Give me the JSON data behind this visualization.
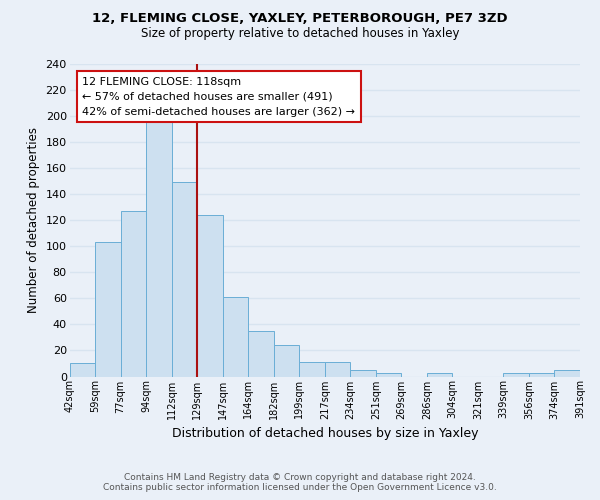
{
  "title1": "12, FLEMING CLOSE, YAXLEY, PETERBOROUGH, PE7 3ZD",
  "title2": "Size of property relative to detached houses in Yaxley",
  "xlabel": "Distribution of detached houses by size in Yaxley",
  "ylabel": "Number of detached properties",
  "bar_labels": [
    "42sqm",
    "59sqm",
    "77sqm",
    "94sqm",
    "112sqm",
    "129sqm",
    "147sqm",
    "164sqm",
    "182sqm",
    "199sqm",
    "217sqm",
    "234sqm",
    "251sqm",
    "269sqm",
    "286sqm",
    "304sqm",
    "321sqm",
    "339sqm",
    "356sqm",
    "374sqm",
    "391sqm"
  ],
  "bar_values": [
    10,
    103,
    127,
    199,
    149,
    124,
    61,
    35,
    24,
    11,
    11,
    5,
    3,
    0,
    3,
    0,
    0,
    3,
    3,
    5
  ],
  "bar_color": "#cde0f0",
  "bar_edge_color": "#6aaed6",
  "annotation_box_text": "12 FLEMING CLOSE: 118sqm\n← 57% of detached houses are smaller (491)\n42% of semi-detached houses are larger (362) →",
  "vline_color": "#aa1111",
  "box_edge_color": "#cc1111",
  "ylim": [
    0,
    240
  ],
  "yticks": [
    0,
    20,
    40,
    60,
    80,
    100,
    120,
    140,
    160,
    180,
    200,
    220,
    240
  ],
  "footer1": "Contains HM Land Registry data © Crown copyright and database right 2024.",
  "footer2": "Contains public sector information licensed under the Open Government Licence v3.0.",
  "background_color": "#eaf0f8",
  "grid_color": "#d8e4f0"
}
